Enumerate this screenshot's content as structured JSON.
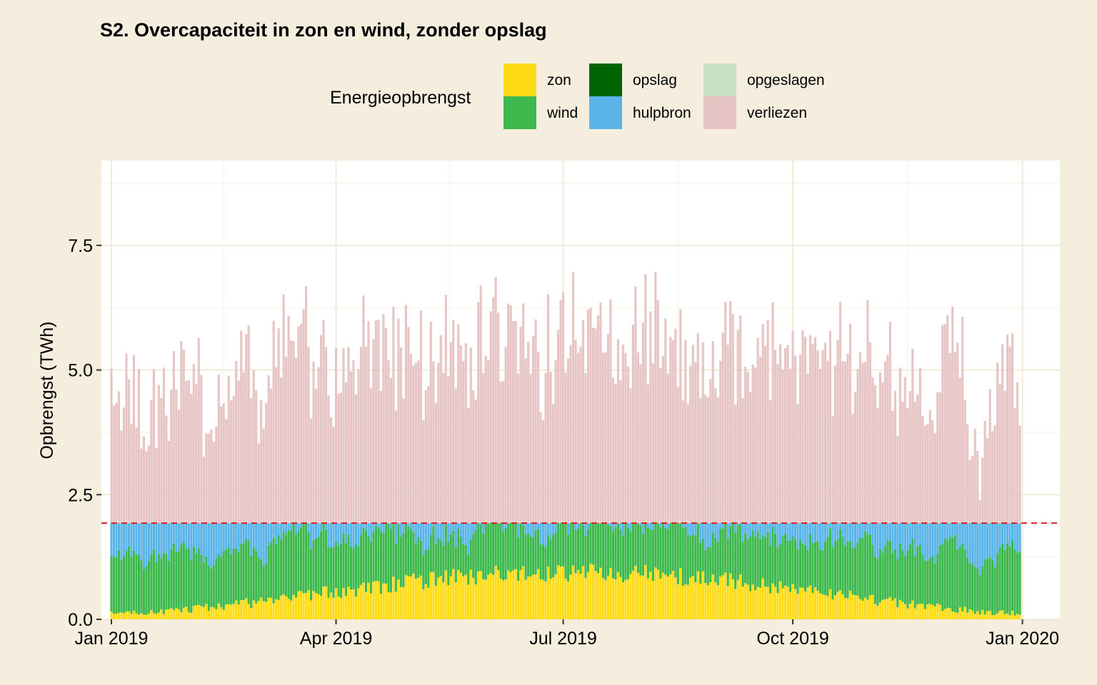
{
  "colors": {
    "background": "#f5eedf",
    "panel": "#ffffff",
    "grid_major": "#f2eada",
    "grid_minor": "#f7f2e8",
    "zon": "#fddc17",
    "wind": "#3db84c",
    "opslag": "#006400",
    "hulpbron": "#5ab4e8",
    "opgeslagen": "#c6e1c2",
    "verliezen": "#e6c5c4",
    "capacity_line": "#d42020"
  },
  "chart_data": {
    "type": "bar",
    "stacked": true,
    "title": "S2. Overcapaciteit in zon en wind, zonder opslag",
    "xlabel": "",
    "ylabel": "Opbrengst (TWh)",
    "ylim": [
      0,
      9.2
    ],
    "xlim_days": [
      -4,
      380
    ],
    "y_ticks": [
      0.0,
      2.5,
      5.0,
      7.5
    ],
    "y_tick_labels": [
      "0.0",
      "2.5",
      "5.0",
      "7.5"
    ],
    "x_ticks": [
      "2019-01-01",
      "2019-04-01",
      "2019-07-01",
      "2019-10-01",
      "2020-01-01"
    ],
    "x_tick_labels": [
      "Jan 2019",
      "Apr 2019",
      "Jul 2019",
      "Oct 2019",
      "Jan 2020"
    ],
    "x_start": "2019-01-01",
    "days": 365,
    "demand_line": 1.93,
    "legend": {
      "title": "Energieopbrengst",
      "position": "top",
      "items": [
        {
          "key": "zon",
          "label": "zon"
        },
        {
          "key": "wind",
          "label": "wind"
        },
        {
          "key": "opslag",
          "label": "opslag"
        },
        {
          "key": "hulpbron",
          "label": "hulpbron"
        },
        {
          "key": "opgeslagen",
          "label": "opgeslagen"
        },
        {
          "key": "verliezen",
          "label": "verliezen"
        }
      ]
    },
    "series_order": [
      "zon",
      "wind",
      "hulpbron",
      "verliezen"
    ],
    "grid": true,
    "approximate": true
  }
}
